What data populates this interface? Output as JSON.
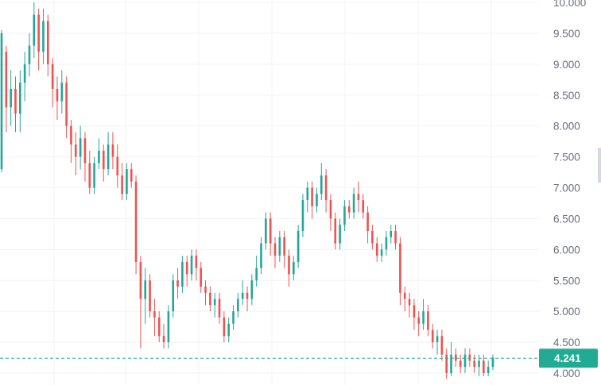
{
  "chart_data": {
    "type": "candlestick",
    "title": "",
    "xlabel": "",
    "ylabel": "",
    "ylim": [
      3.95,
      10.05
    ],
    "y_ticks": [
      4.0,
      4.5,
      5.0,
      5.5,
      6.0,
      6.5,
      7.0,
      7.5,
      8.0,
      8.5,
      9.0,
      9.5,
      10.0
    ],
    "y_tick_labels": [
      "4.000",
      "4.500",
      "5.000",
      "5.500",
      "6.000",
      "6.500",
      "7.000",
      "7.500",
      "8.000",
      "8.500",
      "9.000",
      "9.500",
      "10.000"
    ],
    "grid": true,
    "up_color": "#26a69a",
    "down_color": "#ef5350",
    "current_price": 4.241,
    "current_price_label": "4.241",
    "current_price_color": "#22ab94",
    "candles": [
      [
        7.3,
        9.5,
        9.55,
        7.25
      ],
      [
        9.2,
        8.3,
        9.3,
        7.9
      ],
      [
        8.3,
        8.6,
        8.9,
        8.0
      ],
      [
        8.6,
        8.2,
        8.8,
        7.9
      ],
      [
        8.2,
        8.7,
        8.9,
        7.9
      ],
      [
        8.7,
        9.0,
        9.2,
        8.4
      ],
      [
        9.0,
        9.3,
        9.5,
        8.8
      ],
      [
        9.3,
        9.8,
        10.0,
        9.1
      ],
      [
        9.8,
        9.2,
        9.9,
        8.9
      ],
      [
        9.2,
        9.7,
        9.9,
        9.0
      ],
      [
        9.7,
        9.0,
        9.8,
        8.8
      ],
      [
        9.0,
        8.6,
        9.1,
        8.3
      ],
      [
        8.6,
        8.4,
        8.8,
        8.1
      ],
      [
        8.4,
        8.7,
        8.9,
        8.2
      ],
      [
        8.7,
        8.0,
        8.8,
        7.8
      ],
      [
        8.0,
        7.7,
        8.1,
        7.4
      ],
      [
        7.7,
        7.5,
        7.9,
        7.2
      ],
      [
        7.5,
        7.8,
        8.0,
        7.3
      ],
      [
        7.8,
        7.4,
        7.9,
        7.1
      ],
      [
        7.4,
        7.0,
        7.6,
        6.9
      ],
      [
        7.0,
        7.4,
        7.5,
        6.9
      ],
      [
        7.4,
        7.6,
        7.8,
        7.3
      ],
      [
        7.6,
        7.3,
        7.7,
        7.1
      ],
      [
        7.3,
        7.7,
        7.9,
        7.2
      ],
      [
        7.7,
        7.5,
        7.9,
        7.3
      ],
      [
        7.5,
        7.2,
        7.7,
        7.0
      ],
      [
        7.2,
        6.9,
        7.4,
        6.8
      ],
      [
        6.9,
        7.3,
        7.4,
        6.8
      ],
      [
        7.3,
        7.1,
        7.4,
        7.0
      ],
      [
        7.1,
        5.8,
        7.2,
        5.6
      ],
      [
        5.8,
        5.2,
        5.9,
        4.4
      ],
      [
        5.2,
        5.5,
        5.7,
        4.8
      ],
      [
        5.5,
        5.0,
        5.6,
        4.9
      ],
      [
        5.0,
        4.9,
        5.2,
        4.6
      ],
      [
        4.9,
        4.6,
        5.0,
        4.5
      ],
      [
        4.6,
        4.5,
        4.8,
        4.4
      ],
      [
        4.5,
        5.0,
        5.1,
        4.4
      ],
      [
        5.0,
        5.5,
        5.6,
        4.9
      ],
      [
        5.5,
        5.4,
        5.7,
        5.2
      ],
      [
        5.4,
        5.8,
        5.9,
        5.3
      ],
      [
        5.8,
        5.6,
        5.9,
        5.4
      ],
      [
        5.6,
        5.9,
        6.0,
        5.5
      ],
      [
        5.9,
        5.7,
        6.0,
        5.5
      ],
      [
        5.7,
        5.4,
        5.8,
        5.3
      ],
      [
        5.4,
        5.3,
        5.5,
        5.1
      ],
      [
        5.3,
        5.1,
        5.4,
        5.0
      ],
      [
        5.1,
        5.2,
        5.3,
        4.9
      ],
      [
        5.2,
        4.9,
        5.3,
        4.8
      ],
      [
        4.9,
        4.6,
        5.0,
        4.5
      ],
      [
        4.6,
        4.8,
        4.9,
        4.5
      ],
      [
        4.8,
        5.0,
        5.1,
        4.7
      ],
      [
        5.0,
        5.2,
        5.3,
        4.9
      ],
      [
        5.2,
        5.3,
        5.5,
        5.1
      ],
      [
        5.3,
        5.2,
        5.4,
        5.0
      ],
      [
        5.2,
        5.5,
        5.6,
        5.1
      ],
      [
        5.5,
        5.7,
        5.9,
        5.4
      ],
      [
        5.7,
        6.1,
        6.2,
        5.6
      ],
      [
        6.1,
        6.5,
        6.6,
        6.0
      ],
      [
        6.5,
        6.1,
        6.6,
        5.9
      ],
      [
        6.1,
        5.9,
        6.2,
        5.7
      ],
      [
        5.9,
        6.2,
        6.3,
        5.8
      ],
      [
        6.2,
        5.9,
        6.3,
        5.7
      ],
      [
        5.9,
        5.6,
        6.0,
        5.4
      ],
      [
        5.6,
        5.8,
        5.9,
        5.5
      ],
      [
        5.8,
        6.3,
        6.4,
        5.7
      ],
      [
        6.3,
        6.8,
        6.9,
        6.2
      ],
      [
        6.8,
        7.0,
        7.1,
        6.6
      ],
      [
        7.0,
        6.7,
        7.1,
        6.5
      ],
      [
        6.7,
        6.9,
        7.0,
        6.6
      ],
      [
        6.9,
        7.2,
        7.4,
        6.8
      ],
      [
        7.2,
        6.8,
        7.3,
        6.6
      ],
      [
        6.8,
        6.5,
        6.9,
        6.3
      ],
      [
        6.5,
        6.1,
        6.6,
        6.0
      ],
      [
        6.1,
        6.4,
        6.5,
        6.0
      ],
      [
        6.4,
        6.7,
        6.8,
        6.3
      ],
      [
        6.7,
        6.6,
        6.8,
        6.5
      ],
      [
        6.6,
        6.9,
        7.0,
        6.5
      ],
      [
        6.9,
        6.8,
        7.1,
        6.6
      ],
      [
        6.8,
        6.6,
        6.9,
        6.5
      ],
      [
        6.6,
        6.3,
        6.7,
        6.1
      ],
      [
        6.3,
        6.1,
        6.4,
        6.0
      ],
      [
        6.1,
        5.9,
        6.2,
        5.8
      ],
      [
        5.9,
        6.0,
        6.1,
        5.8
      ],
      [
        6.0,
        6.2,
        6.3,
        5.9
      ],
      [
        6.2,
        6.3,
        6.4,
        6.1
      ],
      [
        6.3,
        6.1,
        6.4,
        6.0
      ],
      [
        6.1,
        5.3,
        6.2,
        5.1
      ],
      [
        5.3,
        5.2,
        5.4,
        5.0
      ],
      [
        5.2,
        5.1,
        5.3,
        4.9
      ],
      [
        5.1,
        4.9,
        5.2,
        4.7
      ],
      [
        4.9,
        4.8,
        5.0,
        4.6
      ],
      [
        4.8,
        5.0,
        5.2,
        4.7
      ],
      [
        5.0,
        4.7,
        5.1,
        4.6
      ],
      [
        4.7,
        4.5,
        4.8,
        4.4
      ],
      [
        4.5,
        4.6,
        4.7,
        4.3
      ],
      [
        4.6,
        4.3,
        4.7,
        4.2
      ],
      [
        4.3,
        4.0,
        4.4,
        3.9
      ],
      [
        4.0,
        4.3,
        4.5,
        3.95
      ],
      [
        4.3,
        4.2,
        4.4,
        4.1
      ],
      [
        4.2,
        4.1,
        4.3,
        4.0
      ],
      [
        4.1,
        4.3,
        4.4,
        4.0
      ],
      [
        4.3,
        4.2,
        4.4,
        4.1
      ],
      [
        4.2,
        4.1,
        4.3,
        4.0
      ],
      [
        4.1,
        4.2,
        4.3,
        3.95
      ],
      [
        4.2,
        4.0,
        4.3,
        3.95
      ],
      [
        4.0,
        4.1,
        4.2,
        3.95
      ],
      [
        4.1,
        4.25,
        4.3,
        4.05
      ]
    ]
  }
}
